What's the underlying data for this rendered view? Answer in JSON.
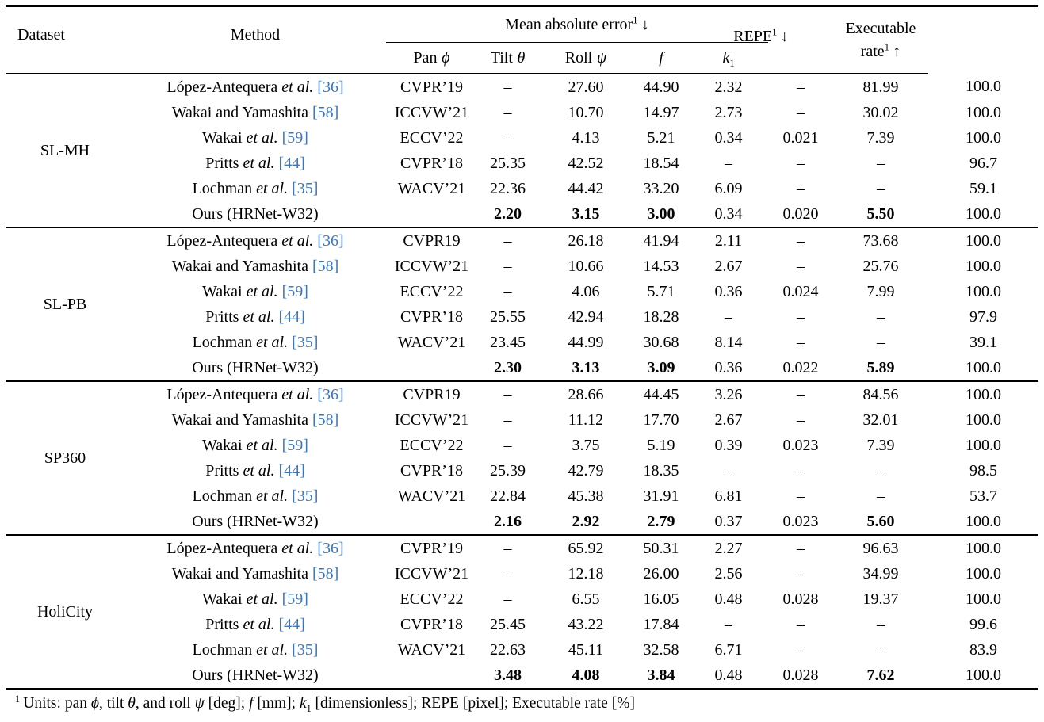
{
  "colors": {
    "citation": "#3e77b6",
    "text": "#000000",
    "background": "#ffffff"
  },
  "table": {
    "header": {
      "dataset": "Dataset",
      "method": "Method",
      "mae": {
        "label": "Mean absolute error",
        "sup": "1",
        "arrow": "↓"
      },
      "sub": [
        {
          "word": "Pan",
          "sym": "ϕ",
          "sub": ""
        },
        {
          "word": "Tilt",
          "sym": "θ",
          "sub": ""
        },
        {
          "word": "Roll",
          "sym": "ψ",
          "sub": ""
        },
        {
          "word": "",
          "sym": "f",
          "sub": ""
        },
        {
          "word": "",
          "sym": "k",
          "sub": "1"
        }
      ],
      "repe": {
        "label": "REPE",
        "sup": "1",
        "arrow": "↓"
      },
      "exec": {
        "line1": "Executable",
        "line2": "rate",
        "sup": "1",
        "arrow": "↑"
      }
    },
    "col_keys": [
      "pan",
      "tilt",
      "roll",
      "f",
      "k1",
      "repe",
      "exec-rate"
    ],
    "groups": [
      {
        "dataset": "SL-MH",
        "rows": [
          {
            "pre": "López-Antequera",
            "etal": " et al.",
            "cite": "[36]",
            "venue": "CVPR’19",
            "vals": [
              "–",
              "27.60",
              "44.90",
              "2.32",
              "–",
              "81.99",
              "100.0"
            ],
            "bold": []
          },
          {
            "pre": "Wakai and Yamashita",
            "etal": "",
            "cite": "[58]",
            "venue": "ICCVW’21",
            "vals": [
              "–",
              "10.70",
              "14.97",
              "2.73",
              "–",
              "30.02",
              "100.0"
            ],
            "bold": []
          },
          {
            "pre": "Wakai",
            "etal": " et al.",
            "cite": "[59]",
            "venue": "ECCV’22",
            "vals": [
              "–",
              "4.13",
              "5.21",
              "0.34",
              "0.021",
              "7.39",
              "100.0"
            ],
            "bold": []
          },
          {
            "pre": "Pritts",
            "etal": " et al.",
            "cite": "[44]",
            "venue": "CVPR’18",
            "vals": [
              "25.35",
              "42.52",
              "18.54",
              "–",
              "–",
              "–",
              "96.7"
            ],
            "bold": []
          },
          {
            "pre": "Lochman",
            "etal": " et al.",
            "cite": "[35]",
            "venue": "WACV’21",
            "vals": [
              "22.36",
              "44.42",
              "33.20",
              "6.09",
              "–",
              "–",
              "59.1"
            ],
            "bold": []
          },
          {
            "pre": "Ours (HRNet-W32)",
            "etal": "",
            "cite": "",
            "venue": "",
            "vals": [
              "2.20",
              "3.15",
              "3.00",
              "0.34",
              "0.020",
              "5.50",
              "100.0"
            ],
            "bold": [
              0,
              1,
              2,
              5
            ]
          }
        ]
      },
      {
        "dataset": "SL-PB",
        "rows": [
          {
            "pre": "López-Antequera",
            "etal": " et al.",
            "cite": "[36]",
            "venue": "CVPR19",
            "vals": [
              "–",
              "26.18",
              "41.94",
              "2.11",
              "–",
              "73.68",
              "100.0"
            ],
            "bold": []
          },
          {
            "pre": "Wakai and Yamashita",
            "etal": "",
            "cite": "[58]",
            "venue": "ICCVW’21",
            "vals": [
              "–",
              "10.66",
              "14.53",
              "2.67",
              "–",
              "25.76",
              "100.0"
            ],
            "bold": []
          },
          {
            "pre": "Wakai",
            "etal": " et al.",
            "cite": "[59]",
            "venue": "ECCV’22",
            "vals": [
              "–",
              "4.06",
              "5.71",
              "0.36",
              "0.024",
              "7.99",
              "100.0"
            ],
            "bold": []
          },
          {
            "pre": "Pritts",
            "etal": " et al.",
            "cite": "[44]",
            "venue": "CVPR’18",
            "vals": [
              "25.55",
              "42.94",
              "18.28",
              "–",
              "–",
              "–",
              "97.9"
            ],
            "bold": []
          },
          {
            "pre": "Lochman",
            "etal": " et al.",
            "cite": "[35]",
            "venue": "WACV’21",
            "vals": [
              "23.45",
              "44.99",
              "30.68",
              "8.14",
              "–",
              "–",
              "39.1"
            ],
            "bold": []
          },
          {
            "pre": "Ours (HRNet-W32)",
            "etal": "",
            "cite": "",
            "venue": "",
            "vals": [
              "2.30",
              "3.13",
              "3.09",
              "0.36",
              "0.022",
              "5.89",
              "100.0"
            ],
            "bold": [
              0,
              1,
              2,
              5
            ]
          }
        ]
      },
      {
        "dataset": "SP360",
        "rows": [
          {
            "pre": "López-Antequera",
            "etal": " et al.",
            "cite": "[36]",
            "venue": "CVPR19",
            "vals": [
              "–",
              "28.66",
              "44.45",
              "3.26",
              "–",
              "84.56",
              "100.0"
            ],
            "bold": []
          },
          {
            "pre": "Wakai and Yamashita",
            "etal": "",
            "cite": "[58]",
            "venue": "ICCVW’21",
            "vals": [
              "–",
              "11.12",
              "17.70",
              "2.67",
              "–",
              "32.01",
              "100.0"
            ],
            "bold": []
          },
          {
            "pre": "Wakai",
            "etal": " et al.",
            "cite": "[59]",
            "venue": "ECCV’22",
            "vals": [
              "–",
              "3.75",
              "5.19",
              "0.39",
              "0.023",
              "7.39",
              "100.0"
            ],
            "bold": []
          },
          {
            "pre": "Pritts",
            "etal": " et al.",
            "cite": "[44]",
            "venue": "CVPR’18",
            "vals": [
              "25.39",
              "42.79",
              "18.35",
              "–",
              "–",
              "–",
              "98.5"
            ],
            "bold": []
          },
          {
            "pre": "Lochman",
            "etal": " et al.",
            "cite": "[35]",
            "venue": "WACV’21",
            "vals": [
              "22.84",
              "45.38",
              "31.91",
              "6.81",
              "–",
              "–",
              "53.7"
            ],
            "bold": []
          },
          {
            "pre": "Ours (HRNet-W32)",
            "etal": "",
            "cite": "",
            "venue": "",
            "vals": [
              "2.16",
              "2.92",
              "2.79",
              "0.37",
              "0.023",
              "5.60",
              "100.0"
            ],
            "bold": [
              0,
              1,
              2,
              5
            ]
          }
        ]
      },
      {
        "dataset": "HoliCity",
        "rows": [
          {
            "pre": "López-Antequera",
            "etal": " et al.",
            "cite": "[36]",
            "venue": "CVPR’19",
            "vals": [
              "–",
              "65.92",
              "50.31",
              "2.27",
              "–",
              "96.63",
              "100.0"
            ],
            "bold": []
          },
          {
            "pre": "Wakai and Yamashita",
            "etal": "",
            "cite": "[58]",
            "venue": "ICCVW’21",
            "vals": [
              "–",
              "12.18",
              "26.00",
              "2.56",
              "–",
              "34.99",
              "100.0"
            ],
            "bold": []
          },
          {
            "pre": "Wakai",
            "etal": " et al.",
            "cite": "[59]",
            "venue": "ECCV’22",
            "vals": [
              "–",
              "6.55",
              "16.05",
              "0.48",
              "0.028",
              "19.37",
              "100.0"
            ],
            "bold": []
          },
          {
            "pre": "Pritts",
            "etal": " et al.",
            "cite": "[44]",
            "venue": "CVPR’18",
            "vals": [
              "25.45",
              "43.22",
              "17.84",
              "–",
              "–",
              "–",
              "99.6"
            ],
            "bold": []
          },
          {
            "pre": "Lochman",
            "etal": " et al.",
            "cite": "[35]",
            "venue": "WACV’21",
            "vals": [
              "22.63",
              "45.11",
              "32.58",
              "6.71",
              "–",
              "–",
              "83.9"
            ],
            "bold": []
          },
          {
            "pre": "Ours (HRNet-W32)",
            "etal": "",
            "cite": "",
            "venue": "",
            "vals": [
              "3.48",
              "4.08",
              "3.84",
              "0.48",
              "0.028",
              "7.62",
              "100.0"
            ],
            "bold": [
              0,
              1,
              2,
              5
            ]
          }
        ]
      }
    ],
    "footnote": {
      "sup": "1",
      "segments": [
        {
          "t": "Units: pan "
        },
        {
          "t": "ϕ",
          "i": true
        },
        {
          "t": ", tilt "
        },
        {
          "t": "θ",
          "i": true
        },
        {
          "t": ", and roll "
        },
        {
          "t": "ψ",
          "i": true
        },
        {
          "t": " [deg]; "
        },
        {
          "t": "f",
          "i": true
        },
        {
          "t": " [mm]; "
        },
        {
          "t": "k",
          "i": true
        },
        {
          "t": "1",
          "sub": true
        },
        {
          "t": " [dimensionless]; REPE [pixel]; Executable rate [%]"
        }
      ]
    }
  }
}
